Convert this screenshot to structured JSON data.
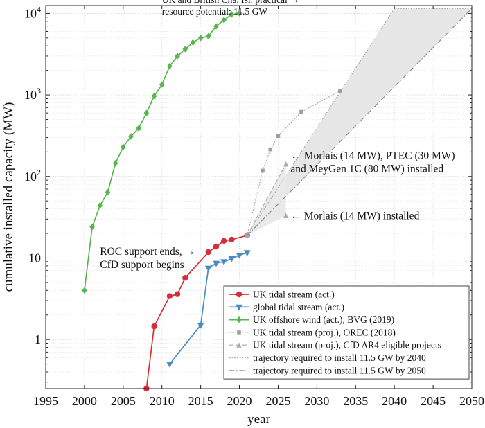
{
  "chart_data": {
    "type": "line",
    "xlabel": "year",
    "ylabel": "cumulative installed capacity (MW)",
    "y_scale": "log",
    "xlim": [
      1995,
      2050
    ],
    "ylim": [
      0.25,
      12500
    ],
    "grid": true,
    "legend_position": "bottom-right",
    "x_ticks": [
      1995,
      2000,
      2005,
      2010,
      2015,
      2020,
      2025,
      2030,
      2035,
      2040,
      2045,
      2050
    ],
    "x_tick_labels": [
      "1995",
      "2000",
      "2005",
      "2010",
      "2015",
      "2020",
      "2025",
      "2030",
      "2035",
      "2040",
      "2045",
      "2050"
    ],
    "y_ticks": [
      1,
      10,
      100,
      1000,
      10000
    ],
    "y_tick_labels": [
      {
        "base": "1",
        "exp": ""
      },
      {
        "base": "10",
        "exp": ""
      },
      {
        "base": "10",
        "exp": "2"
      },
      {
        "base": "10",
        "exp": "3"
      },
      {
        "base": "10",
        "exp": "4"
      }
    ],
    "series": [
      {
        "name": "UK tidal stream (act.)",
        "color": "#d62e37",
        "marker": "circle",
        "line": "solid",
        "x": [
          2008,
          2009,
          2011,
          2012,
          2013,
          2016,
          2017,
          2018,
          2019,
          2021
        ],
        "y": [
          0.25,
          1.45,
          3.4,
          3.6,
          5.7,
          11.8,
          13.8,
          16.2,
          16.8,
          18.9
        ]
      },
      {
        "name": "global tidal stream (act.)",
        "color": "#4a8bc0",
        "marker": "triangle-down",
        "line": "solid",
        "x": [
          2011,
          2015,
          2016,
          2017,
          2018,
          2019,
          2020,
          2021
        ],
        "y": [
          0.5,
          1.5,
          7.5,
          8.6,
          9.0,
          9.8,
          10.8,
          11.6
        ]
      },
      {
        "name": "UK offshore wind (act.), BVG (2019)",
        "color": "#5ab550",
        "marker": "diamond",
        "line": "solid",
        "x": [
          2000,
          2001,
          2002,
          2003,
          2004,
          2005,
          2006,
          2007,
          2008,
          2009,
          2010,
          2011,
          2012,
          2013,
          2014,
          2015,
          2016,
          2017,
          2018,
          2019,
          2020
        ],
        "y": [
          4,
          24,
          44,
          64,
          145,
          230,
          310,
          390,
          600,
          970,
          1340,
          2250,
          2990,
          3650,
          4400,
          5000,
          5250,
          6950,
          8300,
          9720,
          10100
        ]
      },
      {
        "name": "UK tidal stream (proj.), OREC (2018)",
        "color": "#9e9e9e",
        "marker": "square",
        "line": "dotted",
        "x": [
          2021,
          2023,
          2024,
          2025,
          2028,
          2033
        ],
        "y": [
          18.9,
          118,
          215,
          315,
          620,
          1120
        ]
      },
      {
        "name": "UK tidal stream (proj.), CfD AR4 eligible projects",
        "color": "#a9a9a9",
        "marker": "triangle-up",
        "line": "dashed",
        "x": [
          2021,
          2026
        ],
        "y": [
          18.9,
          142
        ]
      },
      {
        "name": "trajectory required to install 11.5 GW by 2040",
        "color": "#a0a0a0",
        "marker": "none",
        "line": "dotted",
        "x": [
          2021,
          2040,
          2050
        ],
        "y": [
          18.9,
          11500,
          11500
        ]
      },
      {
        "name": "trajectory required to install 11.5 GW by 2050",
        "color": "#8a8a8a",
        "marker": "none",
        "line": "dashdot",
        "x": [
          2021,
          2050
        ],
        "y": [
          18.9,
          11500
        ]
      }
    ],
    "extra_points": [
      {
        "series_index": 4,
        "x": 2026,
        "y": 33
      }
    ],
    "shaded_regions": [
      {
        "color": "#e6e6e6",
        "x": [
          2021,
          2040,
          2050,
          2021
        ],
        "y": [
          18.9,
          11500,
          11500,
          18.9
        ]
      },
      {
        "color": "#e9e9e9",
        "x": [
          2021,
          2026,
          2026,
          2021
        ],
        "y": [
          18.9,
          142,
          33,
          18.9
        ]
      }
    ],
    "annotations": [
      {
        "lines": [
          "UK and British Cha. Isl. practical →",
          "resource potential: 11.5 GW"
        ],
        "size": "small",
        "anchor": "start",
        "x": 2010.0,
        "y": 12600
      },
      {
        "lines": [
          "← Morlais (14 MW), PTEC (30 MW)",
          "and MeyGen 1C (80 MW) installed"
        ],
        "size": "normal",
        "anchor": "start",
        "x": 2026.6,
        "y": 150
      },
      {
        "lines": [
          "← Morlais (14 MW) installed"
        ],
        "size": "normal",
        "anchor": "start",
        "x": 2026.6,
        "y": 33
      },
      {
        "lines": [
          "ROC support ends,  →",
          "CfD support begins"
        ],
        "size": "normal",
        "anchor": "start",
        "x": 2002.0,
        "y": 10
      }
    ]
  }
}
